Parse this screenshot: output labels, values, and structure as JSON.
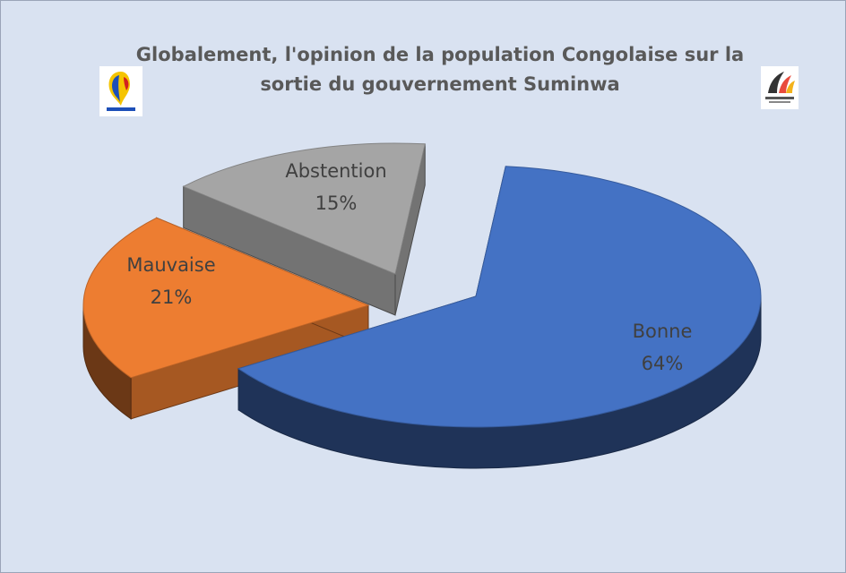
{
  "chart_data": {
    "type": "pie",
    "title_line1": "Globalement, l'opinion de la population Congolaise sur la",
    "title_line2": "sortie du  gouvernement Suminwa",
    "slices": [
      {
        "label": "Bonne",
        "value": 64,
        "value_label": "64%",
        "color": "#4472c4"
      },
      {
        "label": "Mauvaise",
        "value": 21,
        "value_label": "21%",
        "color": "#ed7d31"
      },
      {
        "label": "Abstention",
        "value": 15,
        "value_label": "15%",
        "color": "#a5a5a5"
      }
    ],
    "exploded": true,
    "three_d": true,
    "legend": "none"
  },
  "colors": {
    "background": "#d9e2f1",
    "title": "#595959",
    "label": "#404040"
  },
  "logos": {
    "left": "party-logo",
    "right": "new-pelican-logo"
  }
}
